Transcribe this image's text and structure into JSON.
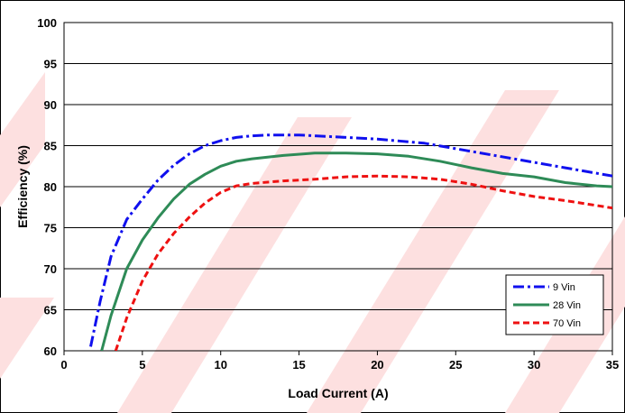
{
  "chart_data": {
    "type": "line",
    "title": "",
    "xlabel": "Load Current (A)",
    "ylabel": "Efficiency (%)",
    "xlim": [
      0,
      35
    ],
    "ylim": [
      60,
      100
    ],
    "xticks": [
      0,
      5,
      10,
      15,
      20,
      25,
      30,
      35
    ],
    "yticks": [
      60,
      65,
      70,
      75,
      80,
      85,
      90,
      95,
      100
    ],
    "grid": "horizontal",
    "legend_position": "bottom-right",
    "watermark": "red diagonal stripes (background)",
    "series": [
      {
        "name": "9 Vin",
        "color": "#1010ee",
        "dash": "dash-dot",
        "x": [
          1.7,
          2.3,
          3,
          4,
          5,
          6,
          7,
          8,
          9,
          10,
          11,
          12,
          13,
          14,
          15,
          17,
          20,
          23,
          26,
          29,
          32,
          35
        ],
        "y": [
          60.5,
          66,
          71.5,
          76,
          78.5,
          80.8,
          82.6,
          84,
          85,
          85.6,
          86,
          86.2,
          86.3,
          86.3,
          86.3,
          86.1,
          85.8,
          85.3,
          84.3,
          83.3,
          82.3,
          81.3
        ]
      },
      {
        "name": "28 Vin",
        "color": "#2e8b57",
        "dash": "solid",
        "x": [
          2.4,
          3,
          4,
          5,
          6,
          7,
          8,
          9,
          10,
          11,
          12,
          14,
          16,
          18,
          20,
          22,
          24,
          26,
          28,
          30,
          32,
          34,
          35
        ],
        "y": [
          60,
          64.3,
          70,
          73.5,
          76.2,
          78.5,
          80.3,
          81.5,
          82.5,
          83.1,
          83.4,
          83.8,
          84.1,
          84.1,
          84,
          83.7,
          83.1,
          82.3,
          81.6,
          81.2,
          80.5,
          80.1,
          80
        ]
      },
      {
        "name": "70 Vin",
        "color": "#ee1111",
        "dash": "dashed",
        "x": [
          3.3,
          4,
          5,
          6,
          7,
          8,
          9,
          10,
          11,
          12,
          14,
          16,
          18,
          20,
          22,
          24,
          26,
          28,
          30,
          32,
          34,
          35
        ],
        "y": [
          60,
          64,
          68.5,
          71.8,
          74.3,
          76.3,
          78,
          79.3,
          80.1,
          80.4,
          80.7,
          80.9,
          81.2,
          81.3,
          81.2,
          80.9,
          80.3,
          79.5,
          78.8,
          78.3,
          77.7,
          77.4
        ]
      }
    ]
  }
}
